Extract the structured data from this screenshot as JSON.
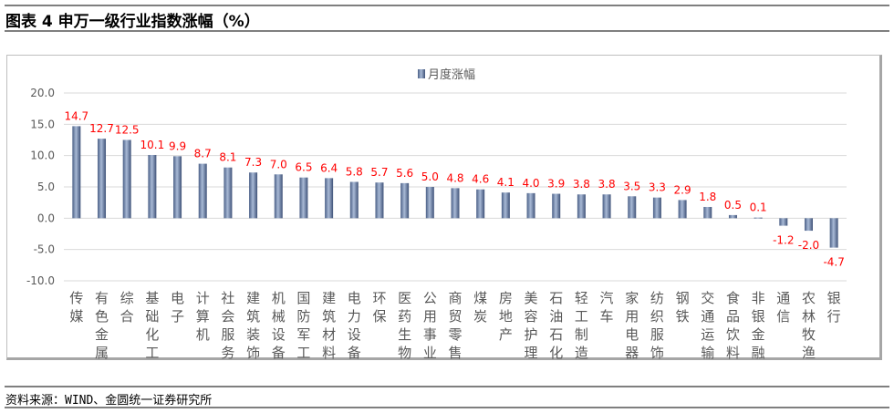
{
  "header": {
    "title": "图表 4   申万一级行业指数涨幅（%）"
  },
  "footer": {
    "source": "资料来源：WIND、金圆统一证券研究所"
  },
  "chart_data": {
    "type": "bar",
    "title": "",
    "legend": {
      "label": "月度涨幅",
      "position": "top"
    },
    "series": [
      {
        "name": "月度涨幅",
        "color": "#6f84aa",
        "label_color": "#ff0000"
      }
    ],
    "categories": [
      "传媒",
      "有色金属",
      "综合",
      "基础化工",
      "电子",
      "计算机",
      "社会服务",
      "建筑装饰",
      "机械设备",
      "国防军工",
      "建筑材料",
      "电力设备",
      "环保",
      "医药生物",
      "公用事业",
      "商贸零售",
      "煤炭",
      "房地产",
      "美容护理",
      "石油石化",
      "轻工制造",
      "汽车",
      "家用电器",
      "纺织服饰",
      "钢铁",
      "交通运输",
      "食品饮料",
      "非银金融",
      "通信",
      "农林牧渔",
      "银行"
    ],
    "values": [
      14.7,
      12.7,
      12.5,
      10.1,
      9.9,
      8.7,
      8.1,
      7.3,
      7.0,
      6.5,
      6.4,
      5.8,
      5.7,
      5.6,
      5.0,
      4.8,
      4.6,
      4.1,
      4.0,
      3.9,
      3.8,
      3.8,
      3.5,
      3.3,
      2.9,
      1.8,
      0.5,
      0.1,
      -1.2,
      -2.0,
      -4.7
    ],
    "ylim": [
      -10,
      20
    ],
    "yticks": [
      "-10.0",
      "-5.0",
      "0.0",
      "5.0",
      "10.0",
      "15.0",
      "20.0"
    ],
    "grid": true
  }
}
